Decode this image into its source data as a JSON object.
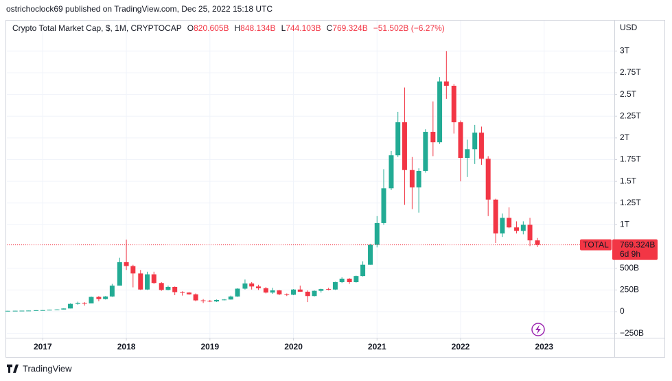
{
  "header": {
    "publisher": "ostrichoclock69 published on TradingView.com, Dec 25, 2022 15:18 UTC"
  },
  "chart_data": {
    "type": "candlestick",
    "title": "Crypto Total Market Cap, $, 1M, CRYPTOCAP",
    "ohlc_letters": [
      "O",
      "H",
      "L",
      "C"
    ],
    "ohlc_labels": [
      "820.605B",
      "848.134B",
      "744.103B",
      "769.324B"
    ],
    "change": "−51.502B (−6.27%)",
    "currency": "USD",
    "symbol": "TOTAL",
    "price_label": "769.324B",
    "countdown": "6d 9h",
    "up_color": "#22ab94",
    "down_color": "#f23645",
    "x": [
      2016.58,
      2016.67,
      2016.75,
      2016.83,
      2016.92,
      2017,
      2017.08,
      2017.17,
      2017.25,
      2017.33,
      2017.42,
      2017.5,
      2017.58,
      2017.67,
      2017.75,
      2017.83,
      2017.92,
      2018,
      2018.08,
      2018.17,
      2018.25,
      2018.33,
      2018.42,
      2018.5,
      2018.58,
      2018.67,
      2018.75,
      2018.83,
      2018.92,
      2019,
      2019.08,
      2019.17,
      2019.25,
      2019.33,
      2019.42,
      2019.5,
      2019.58,
      2019.67,
      2019.75,
      2019.83,
      2019.92,
      2020,
      2020.08,
      2020.17,
      2020.25,
      2020.33,
      2020.42,
      2020.5,
      2020.58,
      2020.67,
      2020.75,
      2020.83,
      2020.92,
      2021,
      2021.08,
      2021.17,
      2021.25,
      2021.33,
      2021.42,
      2021.5,
      2021.58,
      2021.67,
      2021.75,
      2021.83,
      2021.92,
      2022,
      2022.08,
      2022.17,
      2022.25,
      2022.33,
      2022.42,
      2022.5,
      2022.58,
      2022.67,
      2022.75,
      2022.83,
      2022.92
    ],
    "open": [
      10,
      10,
      11,
      12,
      13,
      17,
      18,
      22,
      25,
      37,
      90,
      100,
      95,
      170,
      145,
      175,
      300,
      570,
      525,
      440,
      255,
      430,
      330,
      250,
      285,
      225,
      220,
      200,
      130,
      125,
      118,
      135,
      140,
      175,
      265,
      325,
      290,
      270,
      220,
      245,
      200,
      195,
      255,
      230,
      180,
      240,
      260,
      255,
      340,
      380,
      340,
      410,
      540,
      770,
      1020,
      1420,
      1800,
      2180,
      1630,
      1430,
      1620,
      2070,
      1950,
      2650,
      2600,
      2180,
      1770,
      1870,
      2060,
      1760,
      1290,
      900,
      1080,
      970,
      930,
      1000,
      820.605
    ],
    "high": [
      11,
      12,
      12,
      13,
      17,
      19,
      23,
      27,
      38,
      95,
      115,
      110,
      175,
      180,
      180,
      320,
      620,
      830,
      540,
      480,
      460,
      460,
      340,
      300,
      290,
      235,
      225,
      210,
      145,
      135,
      140,
      145,
      185,
      270,
      370,
      340,
      310,
      285,
      275,
      250,
      210,
      260,
      300,
      245,
      245,
      265,
      275,
      345,
      395,
      385,
      415,
      580,
      780,
      1100,
      1640,
      1850,
      2300,
      2580,
      1780,
      1650,
      2100,
      2420,
      2700,
      3000,
      2620,
      2200,
      1980,
      2150,
      2130,
      1790,
      1300,
      1130,
      1200,
      1040,
      1040,
      1080,
      848.134
    ],
    "low": [
      9,
      10,
      11,
      11,
      13,
      15,
      17,
      21,
      25,
      37,
      80,
      70,
      95,
      120,
      140,
      170,
      300,
      480,
      280,
      250,
      250,
      320,
      240,
      245,
      190,
      185,
      195,
      120,
      100,
      110,
      112,
      130,
      138,
      170,
      255,
      255,
      250,
      210,
      205,
      190,
      180,
      190,
      230,
      110,
      175,
      220,
      245,
      250,
      330,
      320,
      335,
      405,
      540,
      740,
      1000,
      1400,
      1780,
      1230,
      1180,
      1140,
      1600,
      1790,
      1930,
      2450,
      2050,
      1500,
      1550,
      1700,
      1690,
      1100,
      790,
      860,
      960,
      900,
      890,
      755,
      744.103
    ],
    "close": [
      10,
      11,
      12,
      13,
      17,
      18,
      22,
      25,
      37,
      90,
      100,
      95,
      170,
      145,
      175,
      300,
      570,
      525,
      440,
      255,
      430,
      330,
      250,
      285,
      225,
      220,
      200,
      130,
      125,
      118,
      135,
      140,
      175,
      265,
      325,
      290,
      270,
      220,
      245,
      200,
      195,
      255,
      230,
      180,
      240,
      260,
      255,
      340,
      380,
      340,
      410,
      540,
      770,
      1020,
      1420,
      1800,
      2180,
      1630,
      1430,
      1620,
      2070,
      1950,
      2650,
      2600,
      2180,
      1770,
      1870,
      2060,
      1760,
      1290,
      900,
      1080,
      970,
      930,
      1000,
      820.605,
      769.324
    ],
    "xlim": [
      2016.57,
      2023.84
    ],
    "xticks": [
      2017,
      2018,
      2019,
      2020,
      2021,
      2022,
      2023
    ],
    "ylim": [
      -300,
      3350
    ],
    "yticks": [
      {
        "value": -250,
        "label": "−250B"
      },
      0,
      {
        "value": 250,
        "label": "250B"
      },
      {
        "value": 500,
        "label": "500B"
      },
      {
        "value": 1000,
        "label": "1T"
      },
      {
        "value": 1250,
        "label": "1.25T"
      },
      {
        "value": 1500,
        "label": "1.5T"
      },
      {
        "value": 1750,
        "label": "1.75T"
      },
      {
        "value": 2000,
        "label": "2T"
      },
      {
        "value": 2250,
        "label": "2.25T"
      },
      {
        "value": 2500,
        "label": "2.5T"
      },
      {
        "value": 2750,
        "label": "2.75T"
      },
      {
        "value": 3000,
        "label": "3T"
      }
    ],
    "grid": true
  },
  "footer": {
    "brand": "TradingView"
  }
}
